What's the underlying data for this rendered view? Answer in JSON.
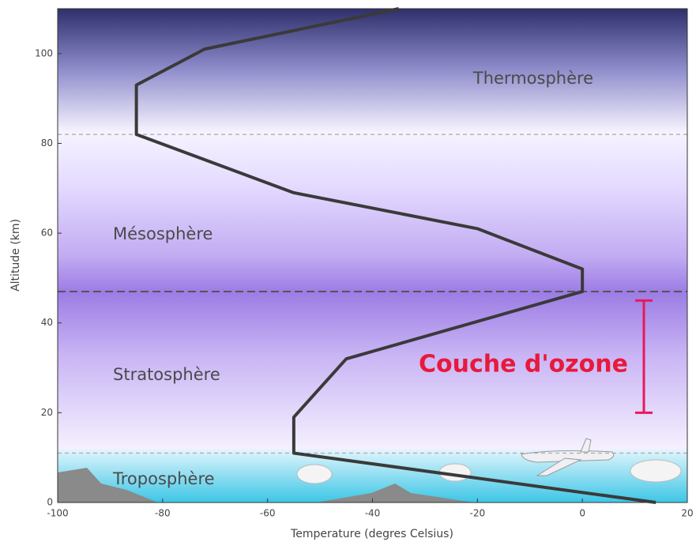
{
  "chart_data": {
    "type": "line",
    "x_label": "Temperature (degres Celsius)",
    "y_label": "Altitude (km)",
    "x": [
      14,
      -55,
      -55,
      -45,
      0,
      0,
      -20,
      -55,
      -85,
      -85,
      -72,
      -35
    ],
    "values": [
      0,
      11,
      19,
      32,
      47,
      52,
      61,
      69,
      82,
      93,
      101,
      110
    ],
    "color": "#3a3a3a",
    "xlim": [
      -100,
      20
    ],
    "xticks": [
      -100,
      -80,
      -60,
      -40,
      -20,
      0,
      20
    ],
    "ylim": [
      0,
      110
    ],
    "yticks": [
      0,
      20,
      40,
      60,
      80,
      100
    ],
    "layer_boundaries": [
      11,
      47,
      82
    ],
    "layers": [
      "Troposphère",
      "Stratosphère",
      "Mésosphère",
      "Thermosphère"
    ],
    "ozone_label": "Couche d'ozone",
    "ozone_range": [
      20,
      45
    ]
  }
}
